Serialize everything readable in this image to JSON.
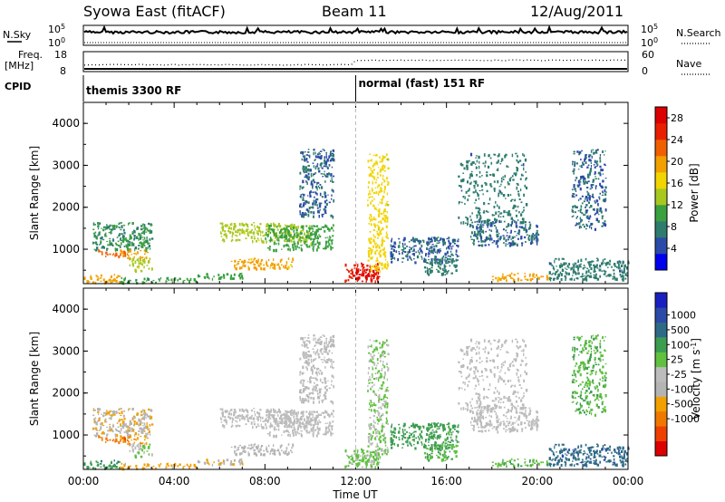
{
  "header": {
    "station": "Syowa East (fitACF)",
    "beam": "Beam 11",
    "date": "12/Aug/2011"
  },
  "noise_panel": {
    "left_label": "N.Sky",
    "right_label": "N.Search",
    "left_ticks": [
      "10^5",
      "10^0"
    ],
    "right_ticks": [
      "10^5",
      "10^0"
    ]
  },
  "freq_panel": {
    "left_label_1": "Freq.",
    "left_label_2": "[MHz]",
    "right_label": "Nave",
    "left_ticks": [
      "18",
      "8"
    ],
    "right_ticks": [
      "60",
      "0"
    ]
  },
  "cpid": {
    "label": "CPID",
    "modes": [
      {
        "name": "themis 3300 RF",
        "start_hour": 0,
        "end_hour": 12
      },
      {
        "name": "normal (fast) 151 RF",
        "start_hour": 12,
        "end_hour": 24
      }
    ]
  },
  "x_axis": {
    "label": "Time UT",
    "ticks": [
      "00:00",
      "04:00",
      "08:00",
      "12:00",
      "16:00",
      "20:00",
      "00:00"
    ]
  },
  "chart_data": [
    {
      "type": "heatmap",
      "name": "power",
      "ylabel": "Slant Range [km]",
      "yticks": [
        "1000",
        "2000",
        "3000",
        "4000"
      ],
      "ylim": [
        180,
        4500
      ],
      "xlim": [
        0,
        24
      ],
      "colorbar_label": "Power [dB]",
      "colorbar_ticks": [
        "4",
        "8",
        "12",
        "16",
        "20",
        "24",
        "28"
      ],
      "colorbar_range": [
        0,
        30
      ],
      "colors": [
        "#0000ee",
        "#2c4aa8",
        "#2e7c6e",
        "#3aa040",
        "#a8c820",
        "#f2d400",
        "#f2a000",
        "#f06000",
        "#e82000",
        "#dd0000"
      ],
      "regions": [
        {
          "x": [
            0.0,
            1.6
          ],
          "y": [
            220,
            420
          ],
          "v": 19
        },
        {
          "x": [
            1.6,
            5.0
          ],
          "y": [
            220,
            340
          ],
          "v": 10
        },
        {
          "x": [
            0.5,
            2.0
          ],
          "y": [
            850,
            1000
          ],
          "v": 22
        },
        {
          "x": [
            1.6,
            2.8
          ],
          "y": [
            800,
            1000
          ],
          "v": 20
        },
        {
          "x": [
            0.4,
            3.0
          ],
          "y": [
            1000,
            1650
          ],
          "v": 9
        },
        {
          "x": [
            2.0,
            3.0
          ],
          "y": [
            500,
            800
          ],
          "v": 14
        },
        {
          "x": [
            5.0,
            7.0
          ],
          "y": [
            300,
            450
          ],
          "v": 10
        },
        {
          "x": [
            6.5,
            9.2
          ],
          "y": [
            550,
            800
          ],
          "v": 19
        },
        {
          "x": [
            6.0,
            10.0
          ],
          "y": [
            1200,
            1650
          ],
          "v": 14
        },
        {
          "x": [
            8.0,
            11.0
          ],
          "y": [
            1000,
            1600
          ],
          "v": 11
        },
        {
          "x": [
            9.5,
            11.0
          ],
          "y": [
            1800,
            3400
          ],
          "v": 6
        },
        {
          "x": [
            11.5,
            13.0
          ],
          "y": [
            250,
            700
          ],
          "v": 26
        },
        {
          "x": [
            11.8,
            13.0
          ],
          "y": [
            300,
            550
          ],
          "v": 30
        },
        {
          "x": [
            12.5,
            13.4
          ],
          "y": [
            500,
            3300
          ],
          "v": 16
        },
        {
          "x": [
            13.5,
            16.5
          ],
          "y": [
            700,
            1300
          ],
          "v": 6
        },
        {
          "x": [
            15.0,
            16.5
          ],
          "y": [
            400,
            800
          ],
          "v": 8
        },
        {
          "x": [
            17.0,
            20.0
          ],
          "y": [
            1100,
            1700
          ],
          "v": 6
        },
        {
          "x": [
            16.5,
            19.5
          ],
          "y": [
            1600,
            3300
          ],
          "v": 7
        },
        {
          "x": [
            18.0,
            20.5
          ],
          "y": [
            280,
            450
          ],
          "v": 19
        },
        {
          "x": [
            20.5,
            24.0
          ],
          "y": [
            300,
            800
          ],
          "v": 7
        },
        {
          "x": [
            21.5,
            23.0
          ],
          "y": [
            1500,
            3400
          ],
          "v": 6
        }
      ]
    },
    {
      "type": "heatmap",
      "name": "velocity",
      "ylabel": "Slant Range [km]",
      "yticks": [
        "1000",
        "2000",
        "3000",
        "4000"
      ],
      "ylim": [
        180,
        4500
      ],
      "xlim": [
        0,
        24
      ],
      "colorbar_label": "Velocity [m s^-1]",
      "colorbar_ticks": [
        "1000",
        "500",
        "100",
        "25",
        "-25",
        "-100",
        "-500",
        "-1000"
      ],
      "colorbar_range": [
        -1200,
        1200
      ],
      "colors": [
        "#dd0000",
        "#ee4000",
        "#f07800",
        "#f2a000",
        "#b4b4b4",
        "#bcbcbc",
        "#60c040",
        "#3c9c50",
        "#2e6a86",
        "#2c4aa8",
        "#1a20c0"
      ],
      "regions": [
        {
          "x": [
            0.0,
            1.6
          ],
          "y": [
            220,
            420
          ],
          "v": 500
        },
        {
          "x": [
            1.6,
            5.0
          ],
          "y": [
            220,
            340
          ],
          "v": -400
        },
        {
          "x": [
            0.5,
            2.0
          ],
          "y": [
            850,
            1000
          ],
          "v": -700
        },
        {
          "x": [
            1.6,
            2.8
          ],
          "y": [
            800,
            1000
          ],
          "v": -500
        },
        {
          "x": [
            0.4,
            3.0
          ],
          "y": [
            1000,
            1650
          ],
          "v": -300
        },
        {
          "x": [
            2.0,
            3.0
          ],
          "y": [
            500,
            800
          ],
          "v": 100
        },
        {
          "x": [
            5.0,
            7.0
          ],
          "y": [
            300,
            450
          ],
          "v": -300
        },
        {
          "x": [
            6.5,
            9.2
          ],
          "y": [
            550,
            800
          ],
          "v": -200
        },
        {
          "x": [
            6.0,
            10.0
          ],
          "y": [
            1200,
            1650
          ],
          "v": 0
        },
        {
          "x": [
            8.0,
            11.0
          ],
          "y": [
            1000,
            1600
          ],
          "v": 20
        },
        {
          "x": [
            9.5,
            11.0
          ],
          "y": [
            1800,
            3400
          ],
          "v": -60
        },
        {
          "x": [
            11.5,
            13.0
          ],
          "y": [
            250,
            700
          ],
          "v": 140
        },
        {
          "x": [
            11.8,
            13.0
          ],
          "y": [
            300,
            550
          ],
          "v": 160
        },
        {
          "x": [
            12.5,
            13.4
          ],
          "y": [
            500,
            3300
          ],
          "v": 120
        },
        {
          "x": [
            13.5,
            16.5
          ],
          "y": [
            700,
            1300
          ],
          "v": 400
        },
        {
          "x": [
            15.0,
            16.5
          ],
          "y": [
            400,
            800
          ],
          "v": 350
        },
        {
          "x": [
            17.0,
            20.0
          ],
          "y": [
            1100,
            1700
          ],
          "v": 0
        },
        {
          "x": [
            16.5,
            19.5
          ],
          "y": [
            1600,
            3300
          ],
          "v": -20
        },
        {
          "x": [
            18.0,
            20.5
          ],
          "y": [
            280,
            450
          ],
          "v": 300
        },
        {
          "x": [
            20.5,
            24.0
          ],
          "y": [
            300,
            800
          ],
          "v": 700
        },
        {
          "x": [
            21.5,
            23.0
          ],
          "y": [
            1500,
            3400
          ],
          "v": 300
        }
      ]
    }
  ]
}
